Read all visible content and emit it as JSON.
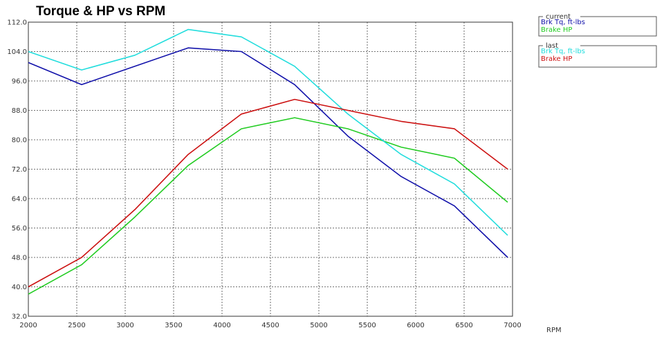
{
  "chart_data": {
    "type": "line",
    "title": "Torque & HP vs RPM",
    "xlabel": "RPM",
    "ylabel": "",
    "xlim": [
      2000,
      7000
    ],
    "ylim": [
      32,
      112
    ],
    "x_ticks": [
      "2000",
      "2500",
      "3000",
      "3500",
      "4000",
      "4500",
      "5000",
      "5500",
      "6000",
      "6500",
      "7000"
    ],
    "y_ticks": [
      "112.0",
      "104.0",
      "96.0",
      "88.0",
      "80.0",
      "72.0",
      "64.0",
      "56.0",
      "48.0",
      "40.0",
      "32.0"
    ],
    "grid": true,
    "legend_placement": "right",
    "legend_groups": [
      {
        "title": "current",
        "entries": [
          {
            "label": "Brk Tq, ft-lbs",
            "color": "#1111aa"
          },
          {
            "label": "Brake HP",
            "color": "#22cc22"
          }
        ]
      },
      {
        "title": "last",
        "entries": [
          {
            "label": "Brk Tq, ft-lbs",
            "color": "#22dddd"
          },
          {
            "label": "Brake HP",
            "color": "#cc1111"
          }
        ]
      }
    ],
    "series": [
      {
        "name": "Brk Tq, ft-lbs",
        "group": "current",
        "color": "#1111aa",
        "x": [
          2000,
          2550,
          3100,
          3650,
          4200,
          4750,
          5300,
          5850,
          6400,
          6950
        ],
        "y": [
          101,
          95,
          100,
          105,
          104,
          95,
          81,
          70,
          62,
          48
        ]
      },
      {
        "name": "Brake HP",
        "group": "current",
        "color": "#22cc22",
        "x": [
          2000,
          2550,
          3100,
          3650,
          4200,
          4750,
          5300,
          5850,
          6400,
          6950
        ],
        "y": [
          38,
          46,
          59,
          73,
          83,
          86,
          83,
          78,
          75,
          63
        ]
      },
      {
        "name": "Brk Tq, ft-lbs",
        "group": "last",
        "color": "#22dddd",
        "x": [
          2000,
          2550,
          3100,
          3650,
          4200,
          4750,
          5300,
          5850,
          6400,
          6950
        ],
        "y": [
          104,
          99,
          103,
          110,
          108,
          100,
          87,
          76,
          68,
          54
        ]
      },
      {
        "name": "Brake HP",
        "group": "last",
        "color": "#cc1111",
        "x": [
          2000,
          2550,
          3100,
          3650,
          4200,
          4750,
          5300,
          5850,
          6400,
          6950
        ],
        "y": [
          40,
          48,
          61,
          76,
          87,
          91,
          88,
          85,
          83,
          72
        ]
      }
    ]
  }
}
